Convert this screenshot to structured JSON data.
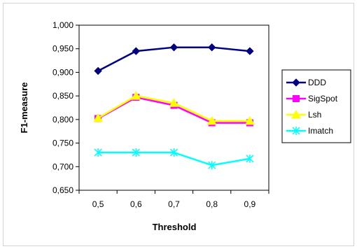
{
  "chart_data": {
    "type": "line",
    "title": "",
    "xlabel": "Threshold",
    "ylabel": "F1-measure",
    "categories": [
      "0,5",
      "0,6",
      "0,7",
      "0,8",
      "0,9"
    ],
    "ylim": [
      0.65,
      1.0
    ],
    "ytick_labels": [
      "1,000",
      "0,950",
      "0,900",
      "0,850",
      "0,800",
      "0,750",
      "0,700",
      "0,650"
    ],
    "grid": false,
    "legend_position": "right",
    "series": [
      {
        "name": "DDD",
        "color": "#000080",
        "marker": "diamond",
        "values": [
          0.903,
          0.945,
          0.953,
          0.953,
          0.945
        ]
      },
      {
        "name": "SigSpot",
        "color": "#ff00ff",
        "marker": "square",
        "values": [
          0.802,
          0.847,
          0.83,
          0.793,
          0.793
        ]
      },
      {
        "name": "Lsh",
        "color": "#ffff00",
        "marker": "triangle",
        "values": [
          0.803,
          0.85,
          0.835,
          0.797,
          0.797
        ]
      },
      {
        "name": "Imatch",
        "color": "#00ffff",
        "marker": "x",
        "values": [
          0.73,
          0.73,
          0.73,
          0.703,
          0.717
        ]
      }
    ]
  }
}
